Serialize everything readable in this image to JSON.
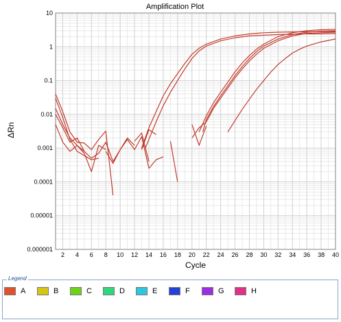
{
  "chart_data": {
    "type": "line",
    "title": "Amplification Plot",
    "xlabel": "Cycle",
    "ylabel": "ΔRn",
    "xlim": [
      1,
      40
    ],
    "ylim": [
      1e-06,
      10
    ],
    "y_scale": "log",
    "grid": true,
    "x_ticks": [
      "2",
      "4",
      "6",
      "8",
      "10",
      "12",
      "14",
      "16",
      "18",
      "20",
      "22",
      "24",
      "26",
      "28",
      "30",
      "32",
      "34",
      "36",
      "38",
      "40"
    ],
    "y_ticks": [
      "0.000001",
      "0.00001",
      "0.0001",
      "0.001",
      "0.01",
      "0.1",
      "1",
      "10"
    ],
    "line_color": "#c0392b",
    "series": [
      {
        "x": [
          13,
          14,
          15,
          16,
          17,
          18,
          19,
          20,
          21,
          22,
          24,
          26,
          28,
          30,
          32,
          34,
          36,
          38,
          40
        ],
        "y": [
          0.001,
          0.004,
          0.012,
          0.035,
          0.08,
          0.16,
          0.32,
          0.6,
          0.9,
          1.2,
          1.7,
          2.1,
          2.4,
          2.6,
          2.7,
          2.75,
          2.8,
          2.82,
          2.85
        ]
      },
      {
        "x": [
          13.5,
          15,
          16,
          17,
          18,
          19,
          20,
          21,
          22,
          24,
          26,
          28,
          30,
          32,
          34,
          36,
          38,
          40
        ],
        "y": [
          0.001,
          0.006,
          0.018,
          0.045,
          0.1,
          0.22,
          0.45,
          0.75,
          1.05,
          1.5,
          1.85,
          2.1,
          2.2,
          2.3,
          2.35,
          2.4,
          2.4,
          2.45
        ]
      },
      {
        "x": [
          21,
          22,
          23,
          24,
          25,
          26,
          27,
          28,
          29,
          30,
          32,
          34,
          36,
          38,
          40
        ],
        "y": [
          0.003,
          0.009,
          0.022,
          0.045,
          0.09,
          0.18,
          0.33,
          0.55,
          0.85,
          1.2,
          2.0,
          2.6,
          3.0,
          3.2,
          3.3
        ]
      },
      {
        "x": [
          21.5,
          22,
          23,
          24,
          25,
          26,
          27,
          28,
          29,
          30,
          32,
          34,
          36,
          38,
          40
        ],
        "y": [
          0.003,
          0.007,
          0.017,
          0.035,
          0.07,
          0.14,
          0.26,
          0.45,
          0.72,
          1.05,
          1.7,
          2.3,
          2.7,
          2.9,
          3.0
        ]
      },
      {
        "x": [
          22,
          23,
          24,
          25,
          26,
          27,
          28,
          29,
          30,
          32,
          34,
          36,
          38,
          40
        ],
        "y": [
          0.006,
          0.015,
          0.03,
          0.06,
          0.12,
          0.22,
          0.38,
          0.6,
          0.9,
          1.5,
          2.1,
          2.5,
          2.6,
          2.7
        ]
      },
      {
        "x": [
          25,
          26,
          27,
          28,
          29,
          30,
          31,
          32,
          33,
          34,
          35,
          36,
          38,
          40
        ],
        "y": [
          0.003,
          0.0065,
          0.014,
          0.028,
          0.055,
          0.1,
          0.18,
          0.3,
          0.45,
          0.65,
          0.85,
          1.05,
          1.4,
          1.7
        ]
      },
      {
        "x": [
          1,
          2,
          3,
          4,
          5,
          6,
          7
        ],
        "y": [
          0.03,
          0.008,
          0.0018,
          0.0008,
          0.0006,
          0.00045,
          0.0005
        ]
      },
      {
        "x": [
          1,
          2,
          3,
          4,
          5
        ],
        "y": [
          0.015,
          0.005,
          0.002,
          0.0012,
          0.0008
        ]
      },
      {
        "x": [
          1,
          2,
          3,
          4,
          5,
          6,
          7,
          8,
          9,
          10,
          11,
          12
        ],
        "y": [
          0.01,
          0.004,
          0.0015,
          0.002,
          0.0008,
          0.0005,
          0.0007,
          0.0015,
          0.0004,
          0.0009,
          0.002,
          0.0012
        ]
      },
      {
        "x": [
          1,
          2,
          3,
          4,
          5,
          6,
          7,
          8
        ],
        "y": [
          0.005,
          0.0015,
          0.0008,
          0.0012,
          0.0007,
          0.0002,
          0.0012,
          0.0009
        ]
      },
      {
        "x": [
          1,
          2,
          3,
          4,
          5,
          6,
          7,
          8,
          9
        ],
        "y": [
          0.04,
          0.012,
          0.003,
          0.0015,
          0.0014,
          0.0009,
          0.0018,
          0.0032,
          4e-05
        ]
      },
      {
        "x": [
          8,
          9,
          10,
          11,
          12,
          13,
          14,
          15,
          16
        ],
        "y": [
          0.0008,
          0.00035,
          0.0009,
          0.0018,
          0.0009,
          0.0022,
          0.00025,
          0.00045,
          0.00055
        ]
      },
      {
        "x": [
          12,
          13,
          14
        ],
        "y": [
          0.0016,
          0.0028,
          0.0004
        ]
      },
      {
        "x": [
          13,
          14,
          15
        ],
        "y": [
          0.0009,
          0.0035,
          0.0025
        ]
      },
      {
        "x": [
          17,
          18
        ],
        "y": [
          0.0016,
          0.0001
        ]
      },
      {
        "x": [
          20,
          21,
          22
        ],
        "y": [
          0.005,
          0.0012,
          0.0045
        ]
      },
      {
        "x": [
          20,
          21,
          22
        ],
        "y": [
          0.002,
          0.004,
          0.006
        ]
      }
    ]
  },
  "legend": {
    "title": "Legend",
    "items": [
      {
        "label": "A",
        "color": "#e0522a"
      },
      {
        "label": "B",
        "color": "#d6c614"
      },
      {
        "label": "C",
        "color": "#6ed11a"
      },
      {
        "label": "D",
        "color": "#2fd87a"
      },
      {
        "label": "E",
        "color": "#2fc6e0"
      },
      {
        "label": "F",
        "color": "#2443d4"
      },
      {
        "label": "G",
        "color": "#9b2fe0"
      },
      {
        "label": "H",
        "color": "#e0308a"
      }
    ]
  }
}
